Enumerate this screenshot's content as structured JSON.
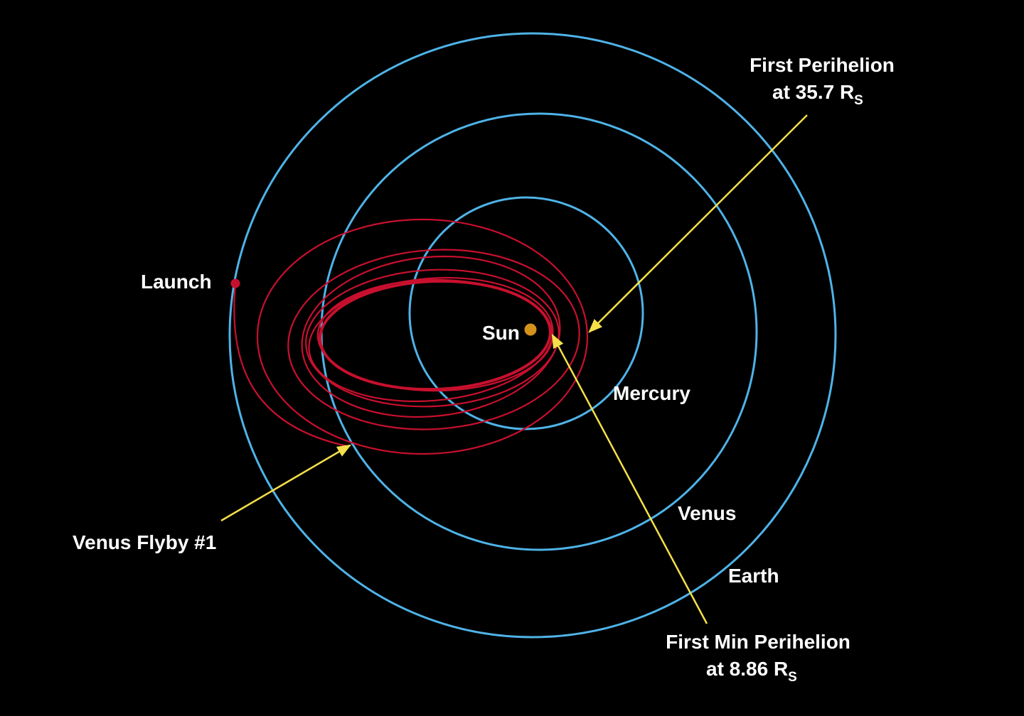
{
  "labels": {
    "launch": "Launch",
    "sun": "Sun",
    "mercury": "Mercury",
    "venus": "Venus",
    "earth": "Earth",
    "venus_flyby": "Venus Flyby #1",
    "first_perihelion_line1": "First Perihelion",
    "first_perihelion_line2": "at 35.7 R",
    "first_perihelion_subscript": "S",
    "first_min_perihelion_line1": "First Min Perihelion",
    "first_min_perihelion_line2": "at 8.86 R",
    "first_min_perihelion_subscript": "S"
  },
  "colors": {
    "background": "#000000",
    "planet_orbits": "#4fb3e8",
    "spacecraft_trajectory": "#c8102e",
    "sun": "#d4921c",
    "callout_arrows": "#f5e04a",
    "text": "#ffffff"
  }
}
